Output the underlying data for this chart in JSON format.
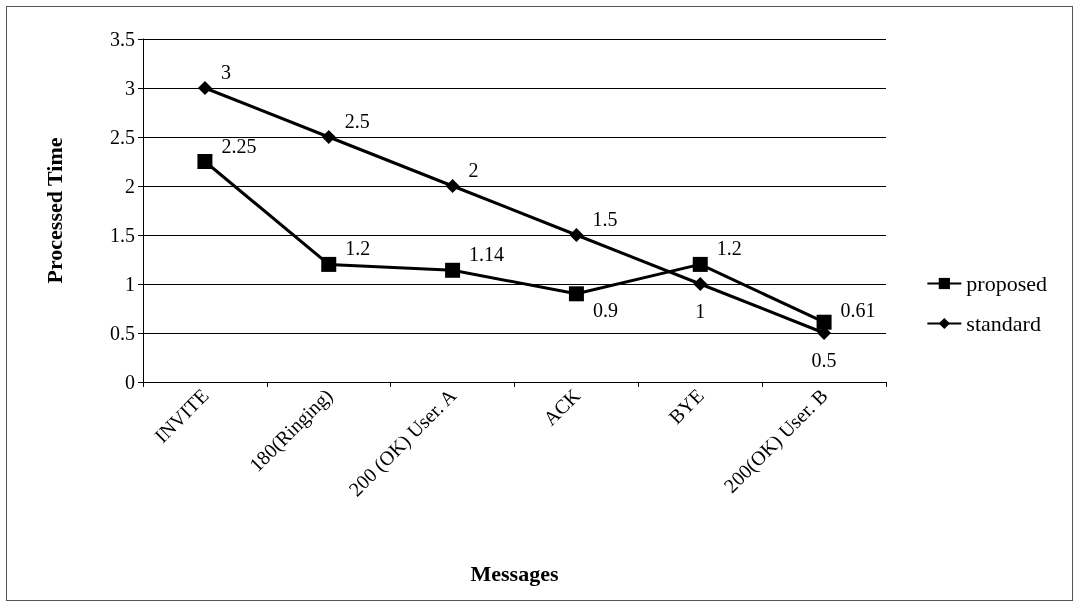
{
  "chart_data": {
    "type": "line",
    "xlabel": "Messages",
    "ylabel": "Processed Time",
    "categories": [
      "INVITE",
      "180(Ringing)",
      "200 (OK) User. A",
      "ACK",
      "BYE",
      "200(OK) User. B"
    ],
    "series": [
      {
        "name": "proposed",
        "color": "#000000",
        "marker": "square",
        "values": [
          2.25,
          1.2,
          1.14,
          0.9,
          1.2,
          0.61
        ]
      },
      {
        "name": "standard",
        "color": "#000000",
        "marker": "diamond",
        "values": [
          3,
          2.5,
          2,
          1.5,
          1,
          0.5
        ]
      }
    ],
    "ylim": [
      0,
      3.5
    ],
    "yticks": [
      0,
      0.5,
      1,
      1.5,
      2,
      2.5,
      3,
      3.5
    ],
    "grid": "y",
    "legend": "right",
    "data_labels": true,
    "line_style": "solid"
  }
}
